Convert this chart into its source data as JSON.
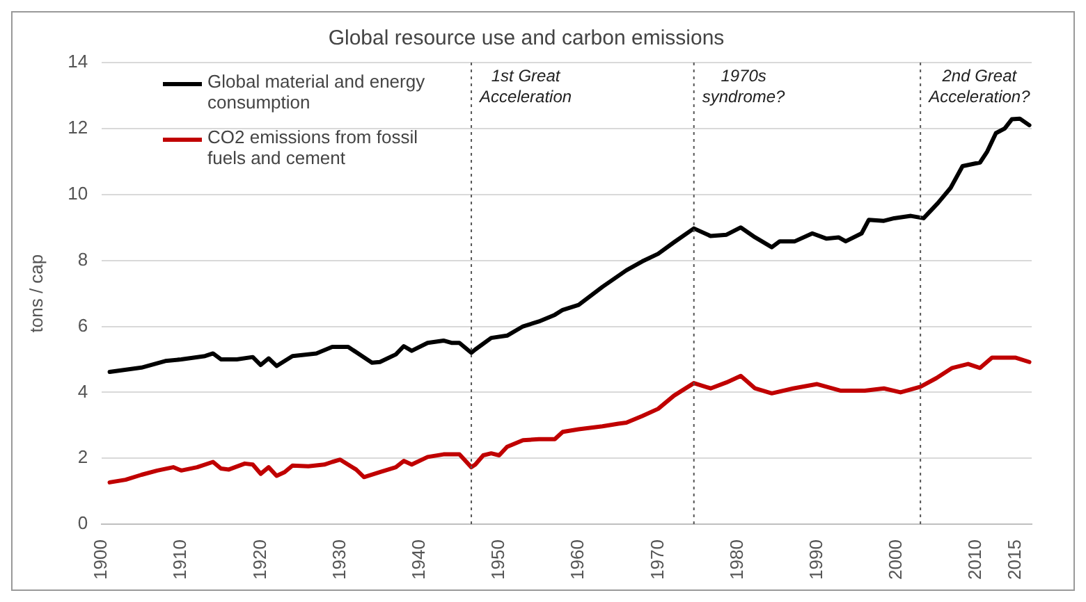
{
  "chart_data": {
    "type": "line",
    "title": "Global resource use and carbon emissions",
    "ylabel": "tons / cap",
    "xlim": [
      1900,
      2017
    ],
    "xticks": [
      1900,
      1910,
      1920,
      1930,
      1940,
      1950,
      1960,
      1970,
      1980,
      1990,
      2000,
      2010,
      2015
    ],
    "ylim": [
      0,
      14
    ],
    "yticks": [
      0,
      2,
      4,
      6,
      8,
      10,
      12,
      14
    ],
    "grid": "y",
    "legend": "top left",
    "marker": "none",
    "line_style": "solid",
    "series": [
      {
        "name": "Global material and energy consumption",
        "color": "#000000",
        "x": [
          1901,
          1905,
          1908,
          1910,
          1913,
          1914,
          1915,
          1917,
          1919,
          1920,
          1921,
          1922,
          1924,
          1927,
          1929,
          1931,
          1934,
          1935,
          1937,
          1938,
          1939,
          1941,
          1943,
          1944,
          1945,
          1946.5,
          1947,
          1949,
          1951,
          1953,
          1955,
          1957,
          1958,
          1960,
          1963,
          1966,
          1968,
          1970,
          1972,
          1974.5,
          1976.6,
          1978.6,
          1980.4,
          1982.2,
          1984.3,
          1985.3,
          1987.2,
          1989.4,
          1991.2,
          1992.7,
          1993.6,
          1995.6,
          1996.5,
          1998.4,
          1999.7,
          2001.8,
          2003.4,
          2005.2,
          2006.8,
          2008.3,
          2010.5,
          2011.4,
          2012.5,
          2013.6,
          2014.5,
          2015.5,
          2016.7
        ],
        "values": [
          4.62,
          4.75,
          4.95,
          5.0,
          5.1,
          5.18,
          5.0,
          5.0,
          5.07,
          4.83,
          5.03,
          4.8,
          5.1,
          5.18,
          5.38,
          5.38,
          4.9,
          4.92,
          5.15,
          5.4,
          5.26,
          5.5,
          5.57,
          5.5,
          5.5,
          5.2,
          5.3,
          5.65,
          5.72,
          6.0,
          6.15,
          6.35,
          6.5,
          6.65,
          7.2,
          7.7,
          7.97,
          8.2,
          8.55,
          8.97,
          8.74,
          8.78,
          9.0,
          8.7,
          8.4,
          8.58,
          8.58,
          8.82,
          8.66,
          8.7,
          8.58,
          8.82,
          9.23,
          9.2,
          9.28,
          9.35,
          9.28,
          9.74,
          10.2,
          10.86,
          10.97,
          11.3,
          11.86,
          12.0,
          12.28,
          12.3,
          12.1
        ]
      },
      {
        "name": "CO2 emissions from fossil fuels and cement",
        "color": "#c00000",
        "x": [
          1901,
          1903,
          1905,
          1907,
          1909,
          1910,
          1912,
          1914,
          1915,
          1916,
          1918,
          1919,
          1920,
          1921,
          1922,
          1923,
          1924,
          1926,
          1928,
          1929,
          1930,
          1932,
          1933,
          1935,
          1937,
          1938,
          1939,
          1941,
          1943,
          1945,
          1946.5,
          1947,
          1948,
          1949,
          1950,
          1951,
          1953,
          1955,
          1957,
          1958,
          1960,
          1963,
          1965,
          1966,
          1968,
          1970,
          1972,
          1974.5,
          1976.6,
          1978.6,
          1980.4,
          1982.2,
          1984.3,
          1987,
          1990,
          1993,
          1996,
          1998.4,
          2000.5,
          2003,
          2005,
          2007,
          2009,
          2010.5,
          2012,
          2015,
          2016.7
        ],
        "values": [
          1.27,
          1.35,
          1.5,
          1.63,
          1.73,
          1.63,
          1.73,
          1.89,
          1.69,
          1.66,
          1.84,
          1.81,
          1.53,
          1.73,
          1.47,
          1.58,
          1.78,
          1.76,
          1.81,
          1.89,
          1.96,
          1.66,
          1.43,
          1.58,
          1.73,
          1.92,
          1.81,
          2.04,
          2.12,
          2.12,
          1.73,
          1.81,
          2.09,
          2.15,
          2.09,
          2.35,
          2.55,
          2.58,
          2.58,
          2.8,
          2.88,
          2.97,
          3.05,
          3.08,
          3.28,
          3.5,
          3.9,
          4.28,
          4.12,
          4.3,
          4.5,
          4.12,
          3.97,
          4.12,
          4.25,
          4.05,
          4.05,
          4.12,
          4.0,
          4.17,
          4.43,
          4.74,
          4.86,
          4.74,
          5.05,
          5.05,
          4.92
        ]
      }
    ],
    "ref_lines": [
      {
        "axis": "x",
        "value": 1946.5,
        "label": "1st Great Acceleration",
        "color": "#555555",
        "line_style": "dotted"
      },
      {
        "axis": "x",
        "value": 1974.5,
        "label": "1970s syndrome?",
        "color": "#555555",
        "line_style": "dotted"
      },
      {
        "axis": "x",
        "value": 2003,
        "label": "2nd Great Acceleration?",
        "color": "#555555",
        "line_style": "dotted"
      }
    ]
  }
}
